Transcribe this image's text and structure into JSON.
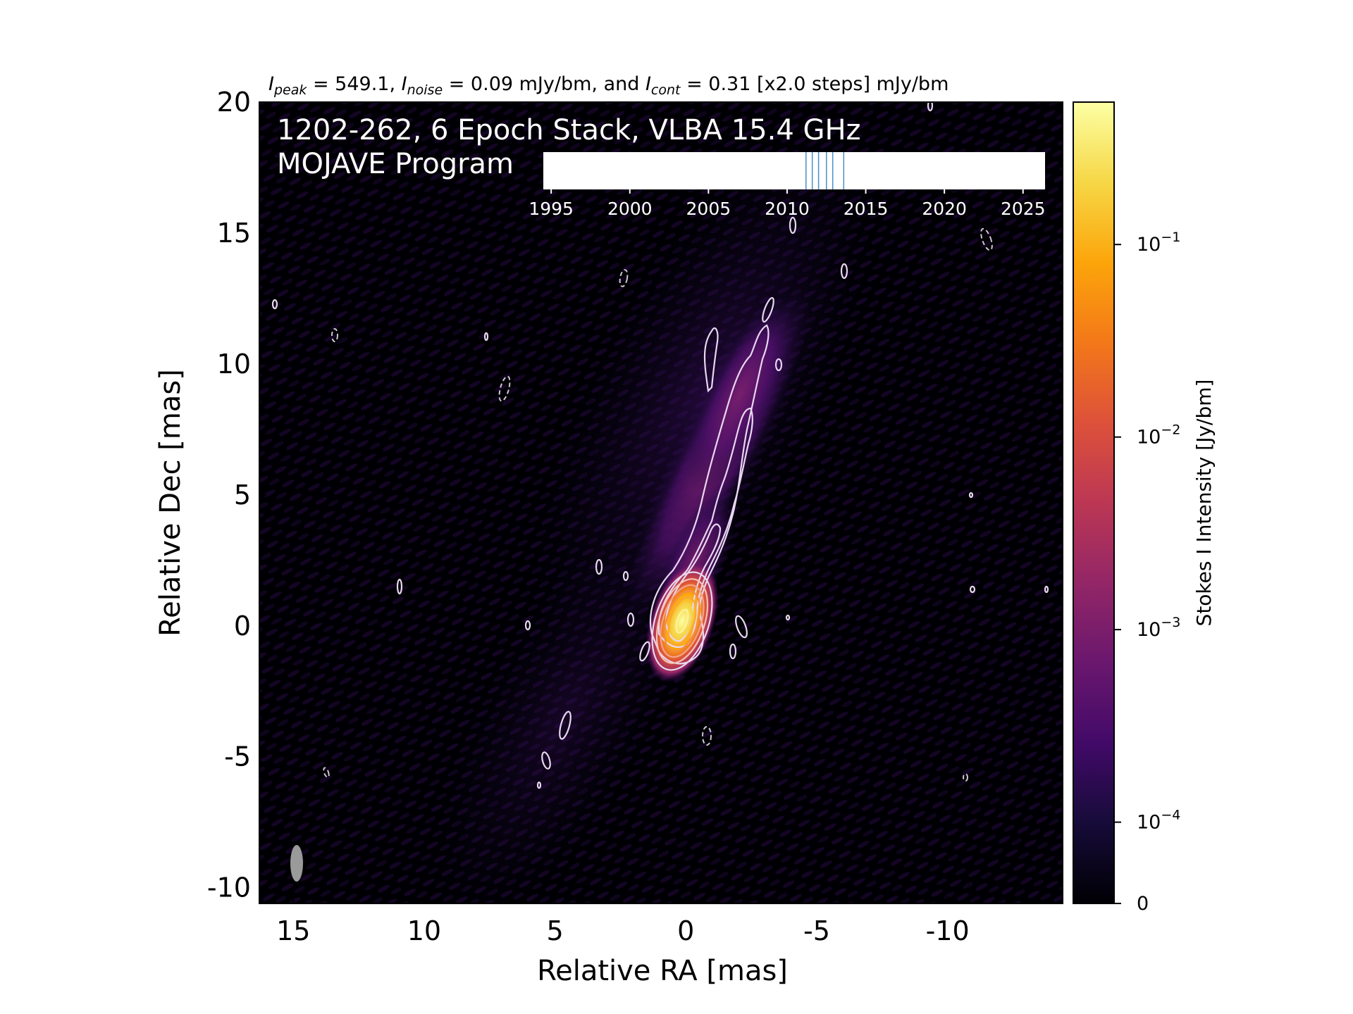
{
  "chart_data": {
    "type": "heatmap",
    "header": {
      "peak_sym": "I",
      "peak_sub": "peak",
      "peak_text": " = 549.1, ",
      "noise_sym": "I",
      "noise_sub": "noise",
      "noise_text": " = 0.09 mJy/bm, and ",
      "cont_sym": "I",
      "cont_sub": "cont",
      "cont_text": " = 0.31 [x2.0 steps] mJy/bm"
    },
    "title_line1": "1202-262, 6 Epoch Stack, VLBA 15.4 GHz",
    "title_line2": "MOJAVE Program",
    "xlabel": "Relative RA [mas]",
    "ylabel": "Relative Dec [mas]",
    "xlim": [
      16.3,
      -14.4
    ],
    "ylim": [
      -10.6,
      20
    ],
    "xticks": [
      "15",
      "10",
      "5",
      "0",
      "-5",
      "-10"
    ],
    "xtick_values": [
      15,
      10,
      5,
      0,
      -5,
      -10
    ],
    "yticks": [
      "20",
      "15",
      "10",
      "5",
      "0",
      "-5",
      "-10"
    ],
    "ytick_values": [
      20,
      15,
      10,
      5,
      0,
      -5,
      -10
    ],
    "colorbar": {
      "label": "Stokes I Intensity [Jy/bm]",
      "scale": "log",
      "colormap": "inferno",
      "tick_values": [
        0.1,
        0.01,
        0.001,
        0.0001,
        0
      ],
      "ticks": [
        {
          "base": "10",
          "exp": "−1"
        },
        {
          "base": "10",
          "exp": "−2"
        },
        {
          "base": "10",
          "exp": "−3"
        },
        {
          "base": "10",
          "exp": "−4"
        },
        {
          "base": "0",
          "exp": ""
        }
      ]
    },
    "epoch_timeline": {
      "ticks": [
        "1995",
        "2000",
        "2005",
        "2010",
        "2015",
        "2020",
        "2025"
      ],
      "tick_values": [
        1995,
        2000,
        2005,
        2010,
        2015,
        2020,
        2025
      ],
      "range": [
        1994.5,
        2026.4
      ],
      "epochs": [
        2011.2,
        2011.6,
        2012.0,
        2012.5,
        2012.9,
        2013.6
      ],
      "epoch_color": "#4a90c8"
    },
    "source": {
      "peak_ra": 0,
      "peak_dec": 0,
      "jet_direction": "north-west"
    },
    "beam": {
      "ra": 14.7,
      "dec": -9.2
    }
  }
}
